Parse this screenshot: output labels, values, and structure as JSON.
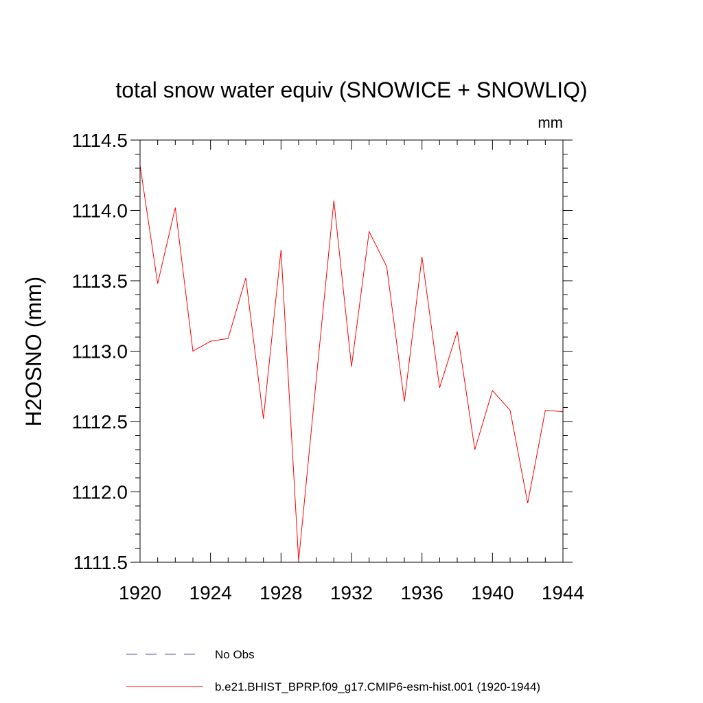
{
  "chart_data": {
    "type": "line",
    "title": "total snow water equiv (SNOWICE + SNOWLIQ)",
    "units": "mm",
    "ylabel": "H2OSNO  (mm)",
    "xlabel": "",
    "xlim": [
      1920,
      1944
    ],
    "ylim": [
      1111.5,
      1114.5
    ],
    "xticks": [
      1920,
      1924,
      1928,
      1932,
      1936,
      1940,
      1944
    ],
    "xtick_labels": [
      "1920",
      "1924",
      "1928",
      "1932",
      "1936",
      "1940",
      "1944"
    ],
    "yticks": [
      1111.5,
      1112.0,
      1112.5,
      1113.0,
      1113.5,
      1114.0,
      1114.5
    ],
    "ytick_labels": [
      "1111.5",
      "1112.0",
      "1112.5",
      "1113.0",
      "1113.5",
      "1114.0",
      "1114.5"
    ],
    "series": [
      {
        "name": "b.e21.BHIST_BPRP.f09_g17.CMIP6-esm-hist.001 (1920-1944)",
        "color": "#ff0000",
        "style": "solid",
        "x": [
          1920,
          1921,
          1922,
          1923,
          1924,
          1925,
          1926,
          1927,
          1928,
          1929,
          1930,
          1931,
          1932,
          1933,
          1934,
          1935,
          1936,
          1937,
          1938,
          1939,
          1940,
          1941,
          1942,
          1943,
          1944
        ],
        "values": [
          1114.32,
          1113.48,
          1114.02,
          1113.0,
          1113.07,
          1113.09,
          1113.52,
          1112.52,
          1113.72,
          1111.51,
          1112.8,
          1114.07,
          1112.89,
          1113.85,
          1113.6,
          1112.64,
          1113.67,
          1112.74,
          1113.14,
          1112.3,
          1112.72,
          1112.58,
          1111.92,
          1112.58,
          1112.57
        ]
      }
    ],
    "legend": [
      {
        "label": "No Obs",
        "color": "#5555aa",
        "style": "dashed"
      },
      {
        "label": "b.e21.BHIST_BPRP.f09_g17.CMIP6-esm-hist.001 (1920-1944)",
        "color": "#ff0000",
        "style": "solid"
      }
    ]
  }
}
